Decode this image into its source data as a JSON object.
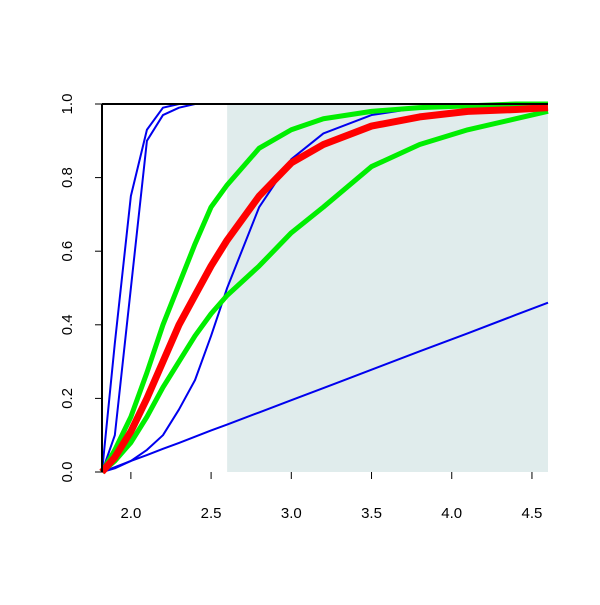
{
  "chart_data": {
    "type": "line",
    "x": [
      1.82,
      1.9,
      2.0,
      2.1,
      2.2,
      2.3,
      2.4,
      2.5,
      2.6,
      2.8,
      3.0,
      3.2,
      3.5,
      3.8,
      4.1,
      4.4,
      4.6
    ],
    "series": [
      {
        "color": "#0000ee",
        "width": 2,
        "values": [
          0,
          0.013,
          0.03,
          0.046,
          0.063,
          0.079,
          0.096,
          0.113,
          0.129,
          0.162,
          0.195,
          0.228,
          0.278,
          0.328,
          0.377,
          0.427,
          0.46
        ]
      },
      {
        "color": "#0000ee",
        "width": 2,
        "values": [
          0,
          0.35,
          0.75,
          0.93,
          0.99,
          1,
          1,
          1,
          1,
          1,
          1,
          1,
          1,
          1,
          1,
          1,
          1
        ]
      },
      {
        "color": "#0000ee",
        "width": 2,
        "values": [
          0,
          0.1,
          0.5,
          0.9,
          0.97,
          0.99,
          1,
          1,
          1,
          1,
          1,
          1,
          1,
          1,
          1,
          1,
          1
        ]
      },
      {
        "color": "#0000ee",
        "width": 2,
        "values": [
          0,
          0.01,
          0.03,
          0.06,
          0.1,
          0.17,
          0.25,
          0.37,
          0.5,
          0.72,
          0.85,
          0.92,
          0.97,
          0.99,
          1,
          1,
          1
        ]
      },
      {
        "color": "#00ee00",
        "width": 5,
        "values": [
          0,
          0.06,
          0.15,
          0.27,
          0.4,
          0.51,
          0.62,
          0.72,
          0.78,
          0.88,
          0.93,
          0.96,
          0.98,
          0.99,
          0.995,
          1,
          1
        ]
      },
      {
        "color": "#00ee00",
        "width": 5,
        "values": [
          0,
          0.03,
          0.08,
          0.15,
          0.23,
          0.3,
          0.37,
          0.43,
          0.48,
          0.56,
          0.65,
          0.72,
          0.83,
          0.89,
          0.93,
          0.96,
          0.98
        ]
      },
      {
        "color": "#ff0000",
        "width": 7,
        "values": [
          0,
          0.04,
          0.11,
          0.2,
          0.3,
          0.4,
          0.48,
          0.56,
          0.63,
          0.75,
          0.84,
          0.89,
          0.94,
          0.965,
          0.98,
          0.985,
          0.99
        ]
      }
    ],
    "shaded_region": [
      2.6,
      4.6
    ],
    "shade_color": "#e0ecec",
    "xlim": [
      1.82,
      4.6
    ],
    "ylim": [
      0,
      1
    ],
    "xticks": [
      {
        "value": 2.0,
        "label": "2.0"
      },
      2.5,
      {
        "value": 3.0,
        "label": "3.0"
      },
      3.5,
      {
        "value": 4.0,
        "label": "4.0"
      },
      4.5
    ],
    "yticks": [
      {
        "value": 0,
        "label": "0.0"
      },
      0.2,
      0.4,
      0.6,
      0.8,
      {
        "value": 1,
        "label": "1.0"
      }
    ]
  }
}
